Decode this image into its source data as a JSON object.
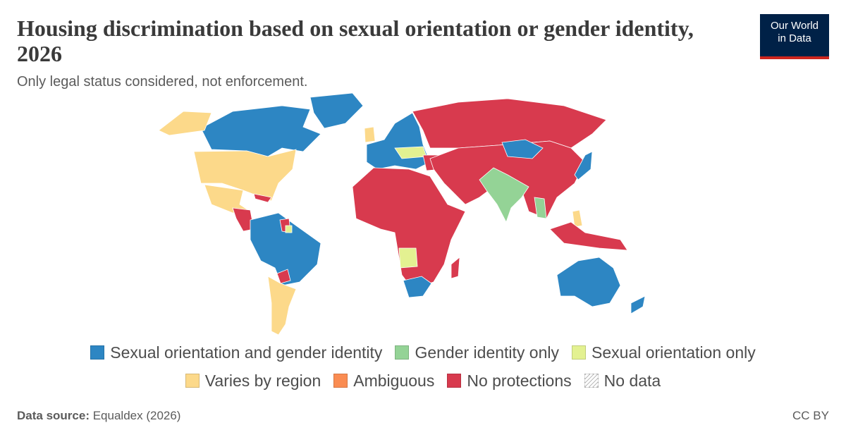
{
  "header": {
    "title": "Housing discrimination based on sexual orientation or gender identity, 2026",
    "subtitle": "Only legal status considered, not enforcement."
  },
  "logo": {
    "line1": "Our World",
    "line2": "in Data"
  },
  "legend": {
    "items": [
      {
        "label": "Sexual orientation and gender identity",
        "color": "#2d86c3"
      },
      {
        "label": "Gender identity only",
        "color": "#94d396"
      },
      {
        "label": "Sexual orientation only",
        "color": "#e3f191"
      },
      {
        "label": "Varies by region",
        "color": "#fcd98a"
      },
      {
        "label": "Ambiguous",
        "color": "#fa8c52"
      },
      {
        "label": "No protections",
        "color": "#d83a4e"
      },
      {
        "label": "No data",
        "color": "#ffffff"
      }
    ]
  },
  "footer": {
    "source_label": "Data source:",
    "source": "Equaldex (2026)",
    "license": "CC BY"
  }
}
